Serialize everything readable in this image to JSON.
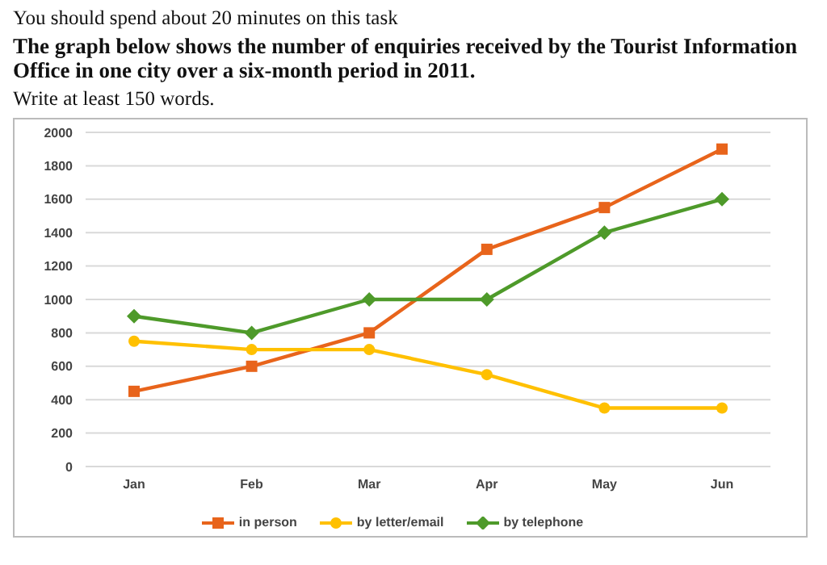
{
  "chart_data": {
    "type": "line",
    "title": "The graph below shows the number of enquiries received by the Tourist Information Office in one city over a six-month period in 2011.",
    "annotations": [
      "You should spend about 20 minutes on this task",
      "Write at least 150 words."
    ],
    "categories": [
      "Jan",
      "Feb",
      "Mar",
      "Apr",
      "May",
      "Jun"
    ],
    "series": [
      {
        "name": "in person",
        "color": "#e8641b",
        "marker": "square",
        "values": [
          450,
          600,
          800,
          1300,
          1550,
          1900
        ]
      },
      {
        "name": "by letter/email",
        "color": "#ffc000",
        "marker": "circle",
        "values": [
          750,
          700,
          700,
          550,
          350,
          350
        ]
      },
      {
        "name": "by telephone",
        "color": "#4e9a2a",
        "marker": "diamond",
        "values": [
          900,
          800,
          1000,
          1000,
          1400,
          1600
        ]
      }
    ],
    "ylim": [
      0,
      2000
    ],
    "yticks": [
      0,
      200,
      400,
      600,
      800,
      1000,
      1200,
      1400,
      1600,
      1800,
      2000
    ],
    "grid": "y",
    "legend": "bottom"
  }
}
